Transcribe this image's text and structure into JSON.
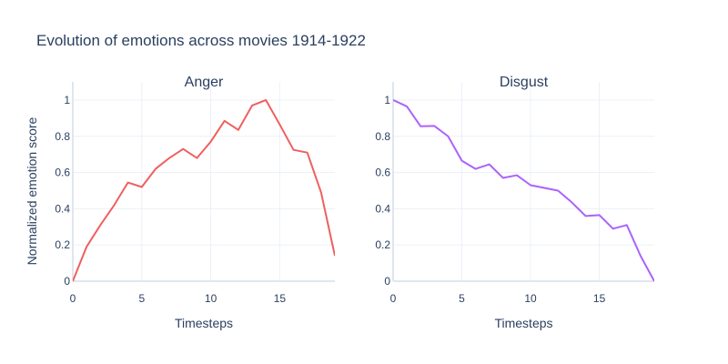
{
  "title": "Evolution of emotions across movies 1914-1922",
  "ylabel": "Normalized emotion score",
  "chart_data": [
    {
      "type": "line",
      "title": "Anger",
      "xlabel": "Timesteps",
      "color": "#ef5f5f",
      "x": [
        0,
        1,
        2,
        3,
        4,
        5,
        6,
        7,
        8,
        9,
        10,
        11,
        12,
        13,
        14,
        15,
        16,
        17,
        18,
        19
      ],
      "values": [
        0.0,
        0.19,
        0.31,
        0.42,
        0.545,
        0.52,
        0.62,
        0.68,
        0.73,
        0.68,
        0.77,
        0.885,
        0.835,
        0.97,
        1.0,
        0.865,
        0.725,
        0.71,
        0.49,
        0.14
      ],
      "xlim": [
        0,
        19
      ],
      "ylim": [
        0,
        1.05
      ],
      "xticks": [
        0,
        5,
        10,
        15
      ],
      "yticks": [
        0,
        0.2,
        0.4,
        0.6,
        0.8,
        1
      ]
    },
    {
      "type": "line",
      "title": "Disgust",
      "xlabel": "Timesteps",
      "color": "#ab63fa",
      "x": [
        0,
        1,
        2,
        3,
        4,
        5,
        6,
        7,
        8,
        9,
        10,
        11,
        12,
        13,
        14,
        15,
        16,
        17,
        18,
        19
      ],
      "values": [
        1.0,
        0.965,
        0.855,
        0.857,
        0.8,
        0.665,
        0.62,
        0.645,
        0.57,
        0.585,
        0.53,
        0.515,
        0.5,
        0.435,
        0.36,
        0.365,
        0.29,
        0.31,
        0.14,
        0.0
      ],
      "xlim": [
        0,
        19
      ],
      "ylim": [
        0,
        1.05
      ],
      "xticks": [
        0,
        5,
        10,
        15
      ],
      "yticks": [
        0,
        0.2,
        0.4,
        0.6,
        0.8,
        1
      ]
    }
  ]
}
